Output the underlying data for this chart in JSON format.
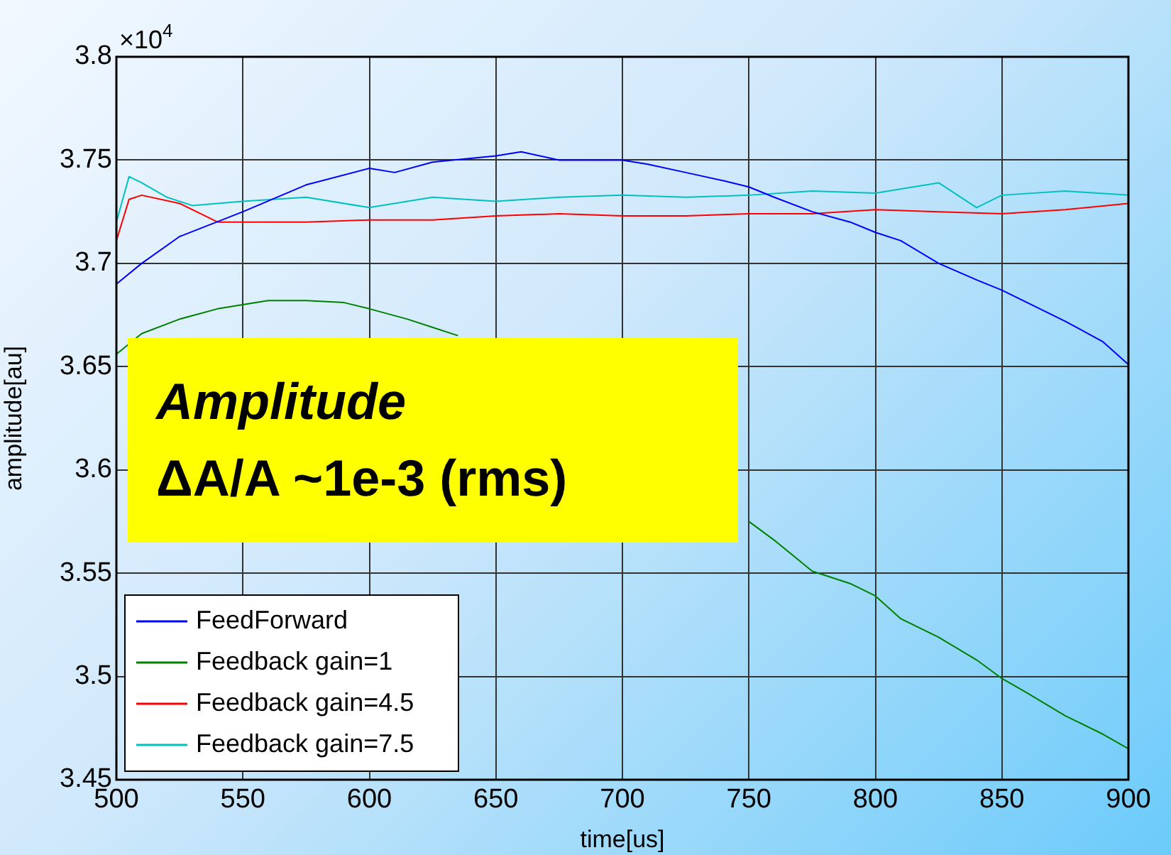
{
  "chart_data": {
    "type": "line",
    "xlabel": "time[us]",
    "ylabel": "amplitude[au]",
    "annotations": [
      "×10$^{4}$",
      "Amplitude",
      "ΔA/A ~1e-3 (rms)"
    ],
    "xlim": [
      500,
      900
    ],
    "xticks": [
      500,
      550,
      600,
      650,
      700,
      750,
      800,
      850,
      900
    ],
    "ylim": [
      3.45,
      3.8
    ],
    "yticks": [
      3.45,
      3.5,
      3.55,
      3.6,
      3.65,
      3.7,
      3.75,
      3.8
    ],
    "grid": true,
    "legend": "bottom left",
    "marker": "none",
    "line_style": "solid",
    "series": [
      {
        "name": "FeedForward",
        "color": "#0000ff",
        "x": [
          500,
          510,
          525,
          550,
          575,
          600,
          610,
          625,
          650,
          660,
          675,
          700,
          710,
          725,
          740,
          750,
          760,
          775,
          790,
          800,
          810,
          825,
          840,
          850,
          860,
          875,
          890,
          900
        ],
        "values": [
          3.69,
          3.7,
          3.713,
          3.725,
          3.738,
          3.746,
          3.744,
          3.749,
          3.752,
          3.754,
          3.75,
          3.75,
          3.748,
          3.744,
          3.74,
          3.737,
          3.732,
          3.725,
          3.72,
          3.715,
          3.711,
          3.7,
          3.692,
          3.687,
          3.681,
          3.672,
          3.662,
          3.651
        ]
      },
      {
        "name": "Feedback gain=1",
        "color": "#008000",
        "x": [
          500,
          510,
          525,
          540,
          550,
          560,
          575,
          590,
          600,
          615,
          625,
          635,
          650,
          700,
          740,
          750,
          760,
          775,
          790,
          800,
          810,
          825,
          840,
          850,
          860,
          875,
          890,
          900
        ],
        "values": [
          3.656,
          3.666,
          3.673,
          3.678,
          3.68,
          3.682,
          3.682,
          3.681,
          3.678,
          3.673,
          3.669,
          3.665,
          null,
          null,
          null,
          3.575,
          3.566,
          3.551,
          3.545,
          3.539,
          3.528,
          3.519,
          3.508,
          3.499,
          3.492,
          3.481,
          3.472,
          3.465
        ]
      },
      {
        "name": "Feedback gain=4.5",
        "color": "#ff0000",
        "x": [
          500,
          505,
          510,
          525,
          540,
          550,
          575,
          600,
          625,
          650,
          675,
          700,
          725,
          750,
          775,
          800,
          825,
          850,
          875,
          900
        ],
        "values": [
          3.711,
          3.731,
          3.733,
          3.729,
          3.72,
          3.72,
          3.72,
          3.721,
          3.721,
          3.723,
          3.724,
          3.723,
          3.723,
          3.724,
          3.724,
          3.726,
          3.725,
          3.724,
          3.726,
          3.729
        ]
      },
      {
        "name": "Feedback gain=7.5",
        "color": "#00c0c0",
        "x": [
          500,
          505,
          510,
          520,
          530,
          550,
          575,
          600,
          625,
          650,
          675,
          700,
          725,
          750,
          775,
          800,
          825,
          840,
          850,
          875,
          900
        ],
        "values": [
          3.72,
          3.742,
          3.739,
          3.732,
          3.728,
          3.73,
          3.732,
          3.727,
          3.732,
          3.73,
          3.732,
          3.733,
          3.732,
          3.733,
          3.735,
          3.734,
          3.739,
          3.727,
          3.733,
          3.735,
          3.733
        ]
      }
    ]
  }
}
